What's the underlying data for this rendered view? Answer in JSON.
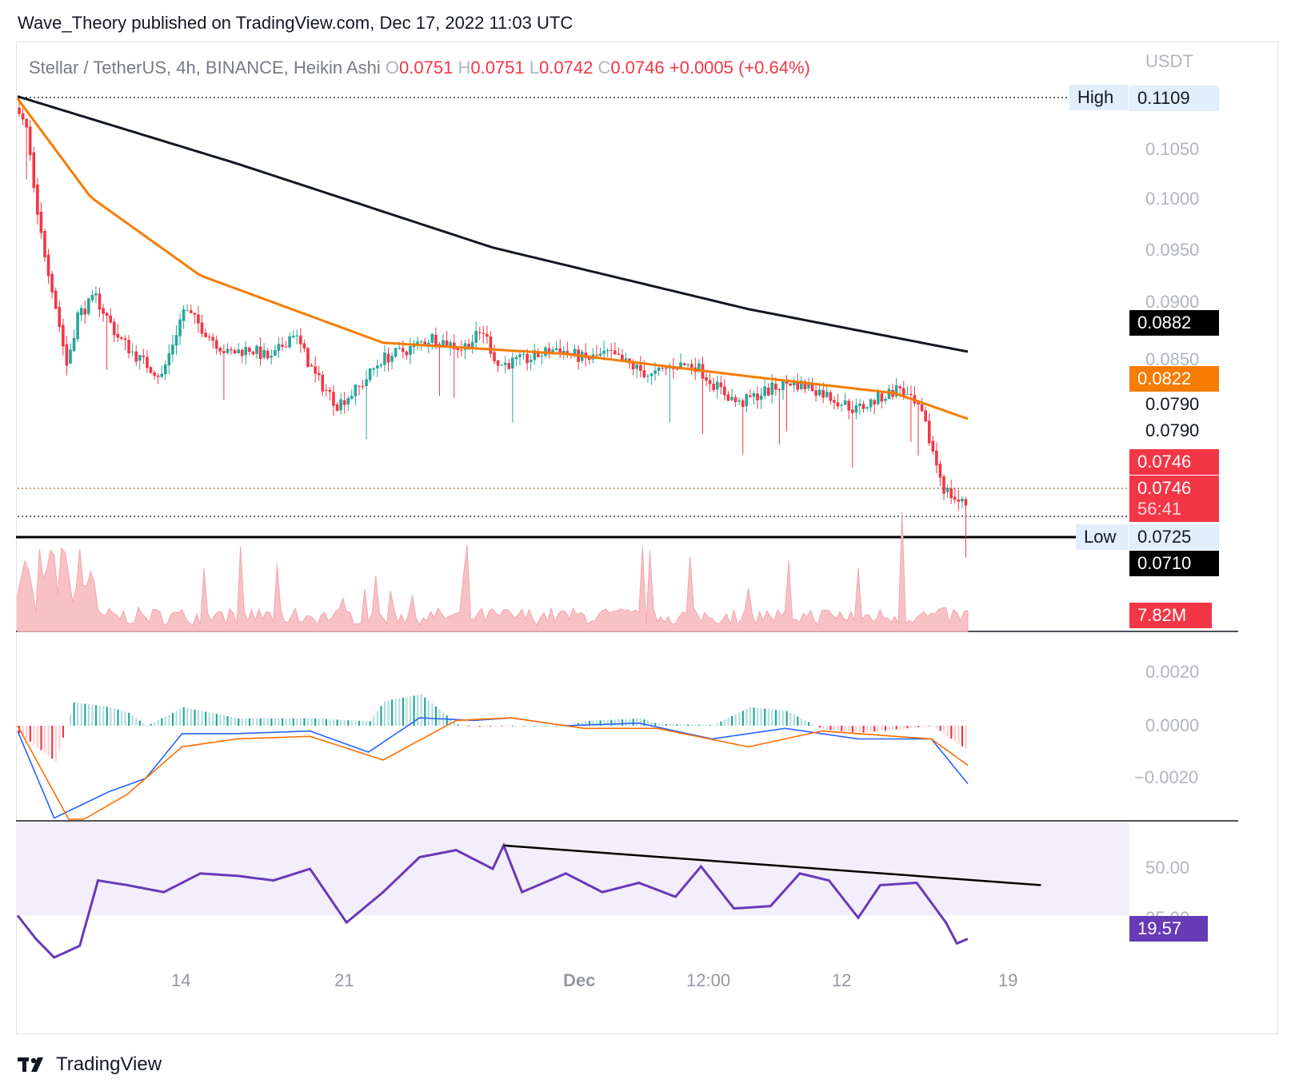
{
  "header": {
    "text": "Wave_Theory published on TradingView.com, Dec 17, 2022 11:03 UTC"
  },
  "legend": {
    "symbol": "Stellar / TetherUS, 4h, BINANCE, Heikin Ashi",
    "o_label": "O",
    "o_value": "0.0751",
    "h_label": "H",
    "h_value": "0.0751",
    "l_label": "L",
    "l_value": "0.0742",
    "c_label": "C",
    "c_value": "0.0746",
    "change": "+0.0005 (+0.64%)"
  },
  "axis": {
    "currency": "USDT"
  },
  "price_axis_labels": [
    "0.1050",
    "0.1000",
    "0.0950",
    "0.0900",
    "0.0850"
  ],
  "price_tags": {
    "high_label": "High",
    "high_value": "0.1109",
    "ema200": "0.0882",
    "ema50": "0.0822",
    "level_a": "0.0790",
    "level_b": "0.0790",
    "last_price_1": "0.0746",
    "last_price_2": "0.0746",
    "countdown": "56:41",
    "low_label": "Low",
    "low_value": "0.0725",
    "support": "0.0710",
    "volume": "7.82M"
  },
  "macd_axis_labels": [
    "0.0020",
    "0.0000",
    "−0.0020"
  ],
  "rsi_axis_labels": [
    "50.00",
    "25.00"
  ],
  "rsi_value": "19.57",
  "time_axis": [
    "14",
    "21",
    "Dec",
    "12:00",
    "12",
    "19"
  ],
  "footer": {
    "brand": "TradingView"
  },
  "colors": {
    "up": "#26a69a",
    "down": "#f23645",
    "ema50": "#f57c00",
    "ema200": "#131722",
    "macd": "#2962ff",
    "signal": "#ff6d00",
    "rsi": "#673ab7",
    "rsi_band": "#f3eefb",
    "vol_up": "#c8e6c9",
    "vol_down": "#f8c1c5"
  },
  "chart_data": {
    "type": "candlestick",
    "symbol": "Stellar / TetherUS",
    "interval": "4h",
    "exchange": "BINANCE",
    "style": "Heikin Ashi",
    "last_bar": {
      "open": 0.0751,
      "high": 0.0751,
      "low": 0.0742,
      "close": 0.0746
    },
    "price_ylim": [
      0.071,
      0.1125
    ],
    "time_range": [
      "Nov 8",
      "Dec 17"
    ],
    "price_path": [
      [
        0,
        0.11
      ],
      [
        3,
        0.108
      ],
      [
        6,
        0.1
      ],
      [
        10,
        0.094
      ],
      [
        14,
        0.087
      ],
      [
        17,
        0.0915
      ],
      [
        22,
        0.093
      ],
      [
        28,
        0.0895
      ],
      [
        34,
        0.0875
      ],
      [
        40,
        0.086
      ],
      [
        46,
        0.092
      ],
      [
        52,
        0.09
      ],
      [
        58,
        0.088
      ],
      [
        64,
        0.0885
      ],
      [
        70,
        0.0875
      ],
      [
        76,
        0.09
      ],
      [
        82,
        0.086
      ],
      [
        88,
        0.0835
      ],
      [
        94,
        0.085
      ],
      [
        100,
        0.0875
      ],
      [
        108,
        0.0885
      ],
      [
        114,
        0.0895
      ],
      [
        122,
        0.0885
      ],
      [
        128,
        0.09
      ],
      [
        132,
        0.087
      ],
      [
        140,
        0.0875
      ],
      [
        148,
        0.0885
      ],
      [
        156,
        0.0875
      ],
      [
        162,
        0.088
      ],
      [
        168,
        0.087
      ],
      [
        174,
        0.086
      ],
      [
        180,
        0.087
      ],
      [
        186,
        0.087
      ],
      [
        192,
        0.085
      ],
      [
        198,
        0.0835
      ],
      [
        204,
        0.0845
      ],
      [
        212,
        0.0855
      ],
      [
        218,
        0.085
      ],
      [
        224,
        0.084
      ],
      [
        230,
        0.083
      ],
      [
        236,
        0.084
      ],
      [
        242,
        0.085
      ],
      [
        248,
        0.0825
      ],
      [
        254,
        0.076
      ],
      [
        258,
        0.0748
      ],
      [
        260,
        0.0746
      ]
    ],
    "ema200": [
      [
        0,
        0.111
      ],
      [
        60,
        0.105
      ],
      [
        130,
        0.0975
      ],
      [
        200,
        0.092
      ],
      [
        260,
        0.0882
      ]
    ],
    "ema50": [
      [
        0,
        0.1108
      ],
      [
        20,
        0.102
      ],
      [
        50,
        0.095
      ],
      [
        100,
        0.089
      ],
      [
        150,
        0.088
      ],
      [
        200,
        0.086
      ],
      [
        240,
        0.0845
      ],
      [
        260,
        0.0822
      ]
    ],
    "high": 0.1109,
    "low": 0.0725,
    "support_level": 0.071,
    "volume_last": "7.82M",
    "macd_ylim": [
      -0.004,
      0.003
    ],
    "macd": [
      [
        0,
        -0.0002
      ],
      [
        10,
        -0.0035
      ],
      [
        25,
        -0.0025
      ],
      [
        35,
        -0.002
      ],
      [
        45,
        -0.0003
      ],
      [
        60,
        -0.0003
      ],
      [
        80,
        -0.0002
      ],
      [
        96,
        -0.001
      ],
      [
        110,
        0.0003
      ],
      [
        125,
        0.0002
      ],
      [
        135,
        0.0003
      ],
      [
        150,
        0.0
      ],
      [
        170,
        0.0001
      ],
      [
        190,
        -0.0005
      ],
      [
        210,
        -0.0001
      ],
      [
        230,
        -0.0005
      ],
      [
        250,
        -0.0005
      ],
      [
        260,
        -0.0022
      ]
    ],
    "macd_signal": [
      [
        0,
        0.0
      ],
      [
        15,
        -0.0038
      ],
      [
        30,
        -0.0026
      ],
      [
        45,
        -0.0008
      ],
      [
        60,
        -0.0005
      ],
      [
        80,
        -0.0004
      ],
      [
        100,
        -0.0013
      ],
      [
        120,
        0.0002
      ],
      [
        135,
        0.0003
      ],
      [
        155,
        -0.0001
      ],
      [
        175,
        -0.0001
      ],
      [
        200,
        -0.0008
      ],
      [
        220,
        -0.0002
      ],
      [
        240,
        -0.0004
      ],
      [
        250,
        -0.0005
      ],
      [
        260,
        -0.0015
      ]
    ],
    "rsi_ylim": [
      0,
      70
    ],
    "rsi_band": [
      30,
      70
    ],
    "rsi": [
      [
        0,
        30
      ],
      [
        5,
        20
      ],
      [
        10,
        12
      ],
      [
        17,
        17
      ],
      [
        22,
        45
      ],
      [
        30,
        43
      ],
      [
        40,
        40
      ],
      [
        50,
        48
      ],
      [
        60,
        47
      ],
      [
        70,
        45
      ],
      [
        80,
        50
      ],
      [
        90,
        27
      ],
      [
        100,
        40
      ],
      [
        110,
        55
      ],
      [
        120,
        58
      ],
      [
        130,
        50
      ],
      [
        133,
        60
      ],
      [
        138,
        40
      ],
      [
        150,
        48
      ],
      [
        160,
        40
      ],
      [
        170,
        44
      ],
      [
        180,
        38
      ],
      [
        187,
        51
      ],
      [
        196,
        33
      ],
      [
        206,
        34
      ],
      [
        214,
        48
      ],
      [
        222,
        45
      ],
      [
        230,
        29
      ],
      [
        236,
        43
      ],
      [
        246,
        44
      ],
      [
        254,
        27
      ],
      [
        257,
        18
      ],
      [
        260,
        20
      ]
    ],
    "rsi_trendline": [
      [
        133,
        60
      ],
      [
        280,
        43
      ]
    ],
    "x_ticks": [
      "14",
      "21",
      "Dec",
      "12:00",
      "12",
      "19"
    ]
  }
}
